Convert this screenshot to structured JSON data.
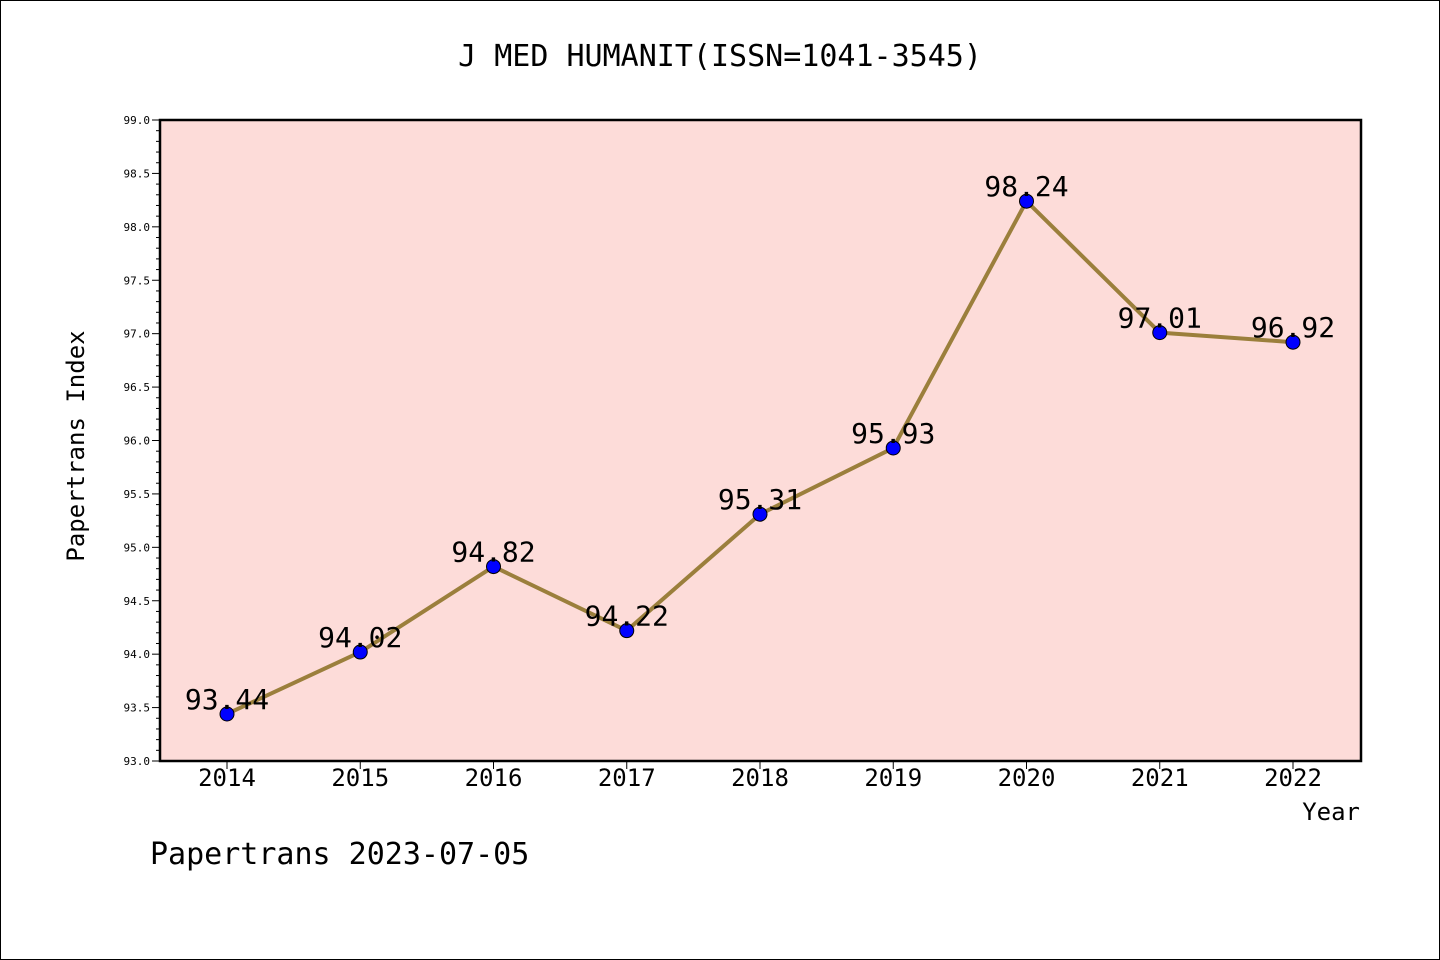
{
  "chart_data": {
    "type": "line",
    "title": "J MED HUMANIT(ISSN=1041-3545)",
    "xlabel": "Year",
    "ylabel": "Papertrans Index",
    "categories": [
      "2014",
      "2015",
      "2016",
      "2017",
      "2018",
      "2019",
      "2020",
      "2021",
      "2022"
    ],
    "series": [
      {
        "values": [
          93.44,
          94.02,
          94.82,
          94.22,
          95.31,
          95.93,
          98.24,
          97.01,
          96.92
        ],
        "data_labels": [
          "93.44",
          "94.02",
          "94.82",
          "94.22",
          "95.31",
          "95.93",
          "98.24",
          "97.01",
          "96.92"
        ]
      }
    ],
    "ylim": [
      93.0,
      99.0
    ],
    "yticks": [
      "93.0",
      "93.5",
      "94.0",
      "94.5",
      "95.0",
      "95.5",
      "96.0",
      "96.5",
      "97.0",
      "97.5",
      "98.0",
      "98.5",
      "99.0"
    ],
    "grid": false,
    "legend": "none",
    "colors": {
      "plot_background": "#fddcd9",
      "line": "#9b7f3c",
      "marker": "#0000ff",
      "axes": "#000000"
    }
  },
  "footer": "Papertrans 2023-07-05"
}
